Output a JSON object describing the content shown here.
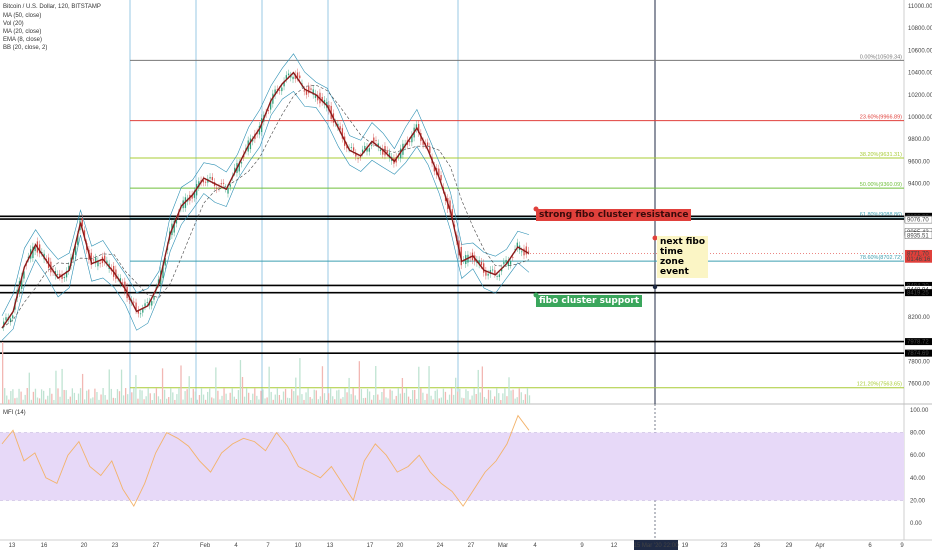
{
  "header": {
    "title": "Bitcoin / U.S. Dollar, 120, BITSTAMP",
    "indicators": [
      "MA (50, close)",
      "Vol (20)",
      "MA (20, close)",
      "EMA (8, close)",
      "BB (20, close, 2)"
    ]
  },
  "osc": {
    "label": "MFI (14)"
  },
  "colors": {
    "fib_red": "#e0403b",
    "fib_green": "#6fbf3a",
    "fib_ygreen": "#a8cc35",
    "fib_teal": "#3c9fb0",
    "fib_gray": "#777777",
    "mfi_band": "#e7d9f8",
    "mfi_line": "#f3b36b",
    "price_main": "#8b1a1a",
    "annotation_red": "#e0403b",
    "annotation_green": "#3aa65c",
    "annotation_yellow": "#fbf5c5"
  },
  "chart_data": {
    "type": "line",
    "title": "Bitcoin / U.S. Dollar, 120, BITSTAMP",
    "xlabel": "",
    "ylabel": "",
    "ylim": [
      7400,
      11000
    ],
    "x_ticks": [
      "13",
      "16",
      "20",
      "23",
      "27",
      "Feb",
      "4",
      "7",
      "10",
      "13",
      "17",
      "20",
      "24",
      "27",
      "Mar",
      "4",
      "9",
      "12",
      "15 Mar '20  22:00",
      "19",
      "23",
      "26",
      "29",
      "Apr",
      "6",
      "9"
    ],
    "y_ticks": [
      {
        "v": 11000,
        "t": "11000.00"
      },
      {
        "v": 10800,
        "t": "10800.00"
      },
      {
        "v": 10600,
        "t": "10600.00"
      },
      {
        "v": 10400,
        "t": "10400.00"
      },
      {
        "v": 10200,
        "t": "10200.00"
      },
      {
        "v": 10000,
        "t": "10000.00"
      },
      {
        "v": 9800,
        "t": "9800.00"
      },
      {
        "v": 9600,
        "t": "9600.00"
      },
      {
        "v": 9400,
        "t": "9400.00"
      },
      {
        "v": 8200,
        "t": "8200.00"
      },
      {
        "v": 7800,
        "t": "7800.00"
      },
      {
        "v": 7600,
        "t": "7600.00"
      }
    ],
    "price_tags": [
      {
        "v": 9106.28,
        "t": "9106.28",
        "bg": "#000000",
        "fg": "#ffffff"
      },
      {
        "v": 9083.48,
        "t": "9083.48",
        "bg": "#ffffff",
        "fg": "#000000"
      },
      {
        "v": 9081.31,
        "t": "9081.31",
        "bg": "#000000",
        "fg": "#ffffff"
      },
      {
        "v": 9076.7,
        "t": "9076.70",
        "bg": "#ffffff",
        "fg": "#000000"
      },
      {
        "v": 8965.43,
        "t": "8965.43",
        "bg": "#ffffff",
        "fg": "#000000"
      },
      {
        "v": 8935.51,
        "t": "8935.51",
        "bg": "#ffffff",
        "fg": "#000000"
      },
      {
        "v": 8771.7,
        "t": "8771.70",
        "bg": "#e0403b",
        "fg": "#ffffff"
      },
      {
        "v": 8720.0,
        "t": "01:46:16",
        "bg": "#e0403b",
        "fg": "#ffffff"
      },
      {
        "v": 8484.2,
        "t": "8484.20",
        "bg": "#000000",
        "fg": "#ffffff"
      },
      {
        "v": 8448.94,
        "t": "8448.94",
        "bg": "#ffffff",
        "fg": "#000000"
      },
      {
        "v": 8419.25,
        "t": "8419.25",
        "bg": "#000000",
        "fg": "#ffffff"
      },
      {
        "v": 7978.72,
        "t": "7978.72",
        "bg": "#000000",
        "fg": "#ffffff"
      },
      {
        "v": 7874.69,
        "t": "7874.69",
        "bg": "#000000",
        "fg": "#ffffff"
      }
    ],
    "fib_levels": [
      {
        "label": "0.00%(10509.34)",
        "v": 10509.34,
        "color": "#777777"
      },
      {
        "label": "23.60%(9966.89)",
        "v": 9966.89,
        "color": "#e0403b"
      },
      {
        "label": "38.20%(9631.31)",
        "v": 9631.31,
        "color": "#a8cc35"
      },
      {
        "label": "50.00%(9360.09)",
        "v": 9360.09,
        "color": "#6fbf3a"
      },
      {
        "label": "61.80%(9088.86)",
        "v": 9088.86,
        "color": "#3c9fb0"
      },
      {
        "label": "78.60%(8702.72)",
        "v": 8702.72,
        "color": "#3c9fb0"
      },
      {
        "label": "121.20%(7563.65)",
        "v": 7563.65,
        "color": "#a8cc35"
      }
    ],
    "horizontal_lines": [
      9106.28,
      9081.31,
      8484.2,
      8419.25,
      7978.72,
      7874.69
    ],
    "price_series": {
      "name": "",
      "values": [
        8100,
        8250,
        8650,
        8850,
        8700,
        8550,
        8620,
        9050,
        8680,
        8720,
        8600,
        8450,
        8250,
        8300,
        8500,
        8950,
        9200,
        9300,
        9450,
        9400,
        9350,
        9550,
        9750,
        9900,
        10150,
        10300,
        10400,
        10250,
        10200,
        10100,
        9900,
        9700,
        9650,
        9780,
        9700,
        9600,
        9750,
        9900,
        9700,
        9450,
        9150,
        8700,
        8750,
        8620,
        8580,
        8680,
        8830,
        8771.7
      ]
    },
    "mfi_series": {
      "name": "",
      "ylim": [
        0,
        100
      ],
      "band": [
        20,
        80
      ],
      "values": [
        70,
        82,
        55,
        62,
        40,
        35,
        60,
        72,
        50,
        42,
        55,
        30,
        15,
        35,
        62,
        80,
        75,
        68,
        55,
        45,
        62,
        70,
        75,
        72,
        64,
        80,
        68,
        50,
        45,
        40,
        50,
        35,
        20,
        55,
        70,
        60,
        45,
        50,
        60,
        45,
        35,
        28,
        15,
        30,
        45,
        55,
        70,
        95,
        82
      ]
    }
  },
  "annotations": {
    "resistance": "strong fibo cluster resistance",
    "support": "fibo cluster support",
    "next_event": [
      "next fibo",
      "time",
      "zone",
      "event"
    ]
  }
}
